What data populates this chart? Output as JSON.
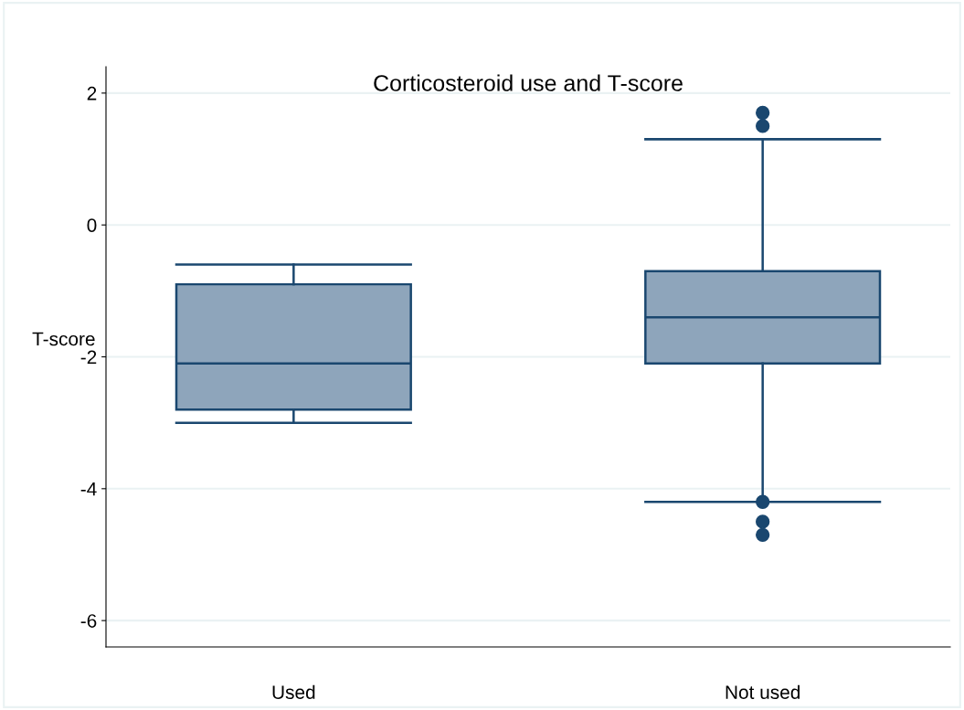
{
  "chart_data": {
    "type": "box",
    "title": "Corticosteroid use and T-score",
    "ylabel": "T-score",
    "categories": [
      "Used",
      "Not used"
    ],
    "boxes": [
      {
        "low": -3.0,
        "q1": -2.8,
        "median": -2.1,
        "q3": -0.9,
        "high": -0.6
      },
      {
        "low": -4.2,
        "q1": -2.1,
        "median": -1.4,
        "q3": -0.7,
        "high": 1.3,
        "outliers": [
          1.7,
          1.5,
          -4.2,
          -4.5,
          -4.7
        ]
      }
    ],
    "color": "#8ea5bb",
    "ylim": [
      -6.4,
      2.4
    ],
    "yticks": [
      -6,
      -4,
      -2,
      0,
      2
    ],
    "grid": "y"
  }
}
